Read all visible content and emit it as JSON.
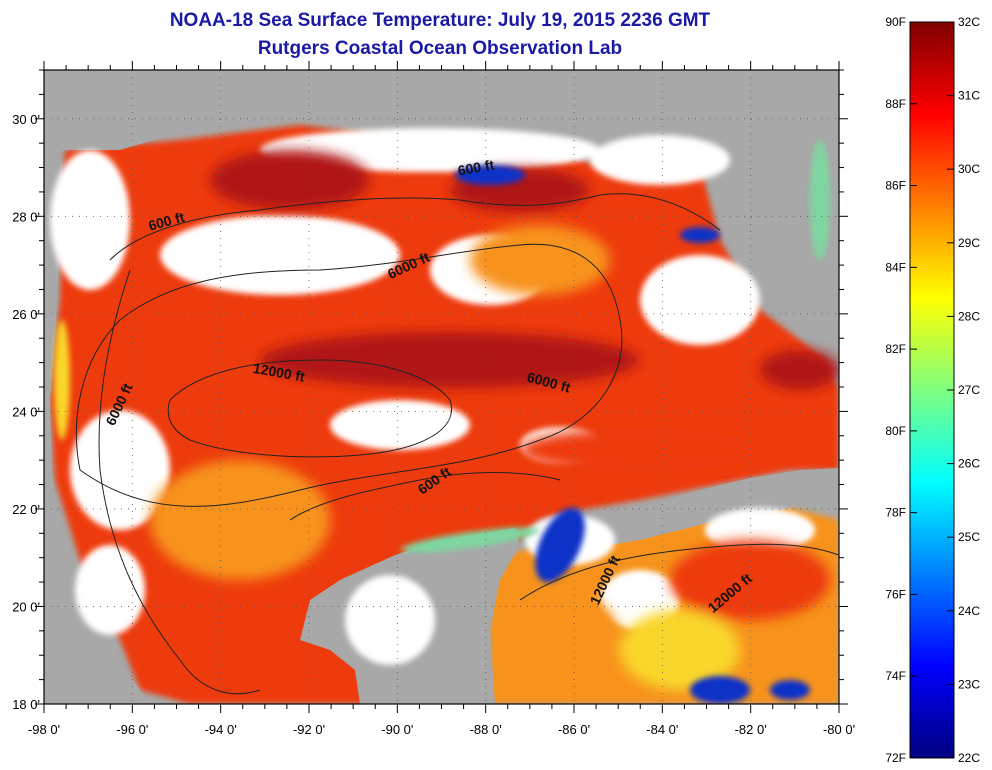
{
  "title": "NOAA-18 Sea Surface Temperature:  July 19, 2015 2236 GMT",
  "subtitle": "Rutgers Coastal Ocean Observation Lab",
  "map": {
    "x_ticks": [
      "-98 0'",
      "-96 0'",
      "-94 0'",
      "-92 0'",
      "-90 0'",
      "-88 0'",
      "-86 0'",
      "-84 0'",
      "-82 0'",
      "-80 0'"
    ],
    "y_ticks": [
      "30 0'",
      "28 0'",
      "26 0'",
      "24 0'",
      "22 0'",
      "20 0'",
      "18 0'"
    ],
    "lon_range": [
      -98,
      -80
    ],
    "lat_range": [
      18,
      31
    ],
    "contour_labels": [
      {
        "text": "600 ft",
        "lon": -88.2,
        "lat": 28.9,
        "angle": -10
      },
      {
        "text": "600 ft",
        "lon": -95.2,
        "lat": 27.8,
        "angle": -15
      },
      {
        "text": "6000 ft",
        "lon": -89.7,
        "lat": 26.9,
        "angle": -25
      },
      {
        "text": "12000 ft",
        "lon": -92.7,
        "lat": 24.7,
        "angle": 10
      },
      {
        "text": "6000 ft",
        "lon": -86.6,
        "lat": 24.5,
        "angle": 15
      },
      {
        "text": "6000 ft",
        "lon": -96.2,
        "lat": 24.1,
        "angle": -65
      },
      {
        "text": "600 ft",
        "lon": -89.1,
        "lat": 22.5,
        "angle": -35
      },
      {
        "text": "12000 ft",
        "lon": -85.2,
        "lat": 20.5,
        "angle": -65
      },
      {
        "text": "12000 ft",
        "lon": -82.4,
        "lat": 20.2,
        "angle": -40
      }
    ],
    "colors": {
      "land": "#a8a8a8",
      "cloud": "#ffffff",
      "hot": "#b11212",
      "warm": "#ee3a10",
      "mid": "#f7931c",
      "cool": "#f9d62a",
      "cold": "#1030c8",
      "coastal": "#7fd6a0"
    }
  },
  "colorbar": {
    "f_labels": [
      "90F",
      "88F",
      "86F",
      "84F",
      "82F",
      "80F",
      "78F",
      "76F",
      "74F",
      "72F"
    ],
    "c_labels": [
      "32C",
      "31C",
      "30C",
      "29C",
      "28C",
      "27C",
      "26C",
      "25C",
      "24C",
      "23C",
      "22C"
    ],
    "colors": [
      "#00007f",
      "#0000ff",
      "#007fff",
      "#00ffff",
      "#7fff7f",
      "#ffff00",
      "#ff7f00",
      "#ff0000",
      "#7f0000"
    ]
  }
}
